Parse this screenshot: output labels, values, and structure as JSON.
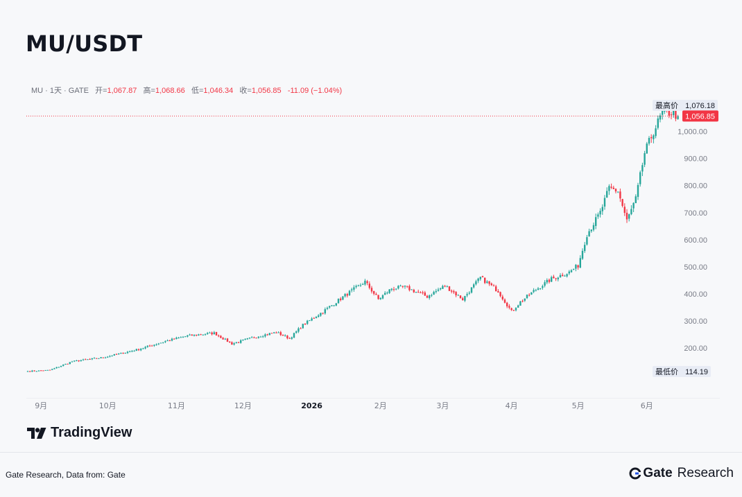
{
  "title": "MU/USDT",
  "header": {
    "symbol_info": "MU · 1天 · GATE",
    "open_label": "开=",
    "open_value": "1,067.87",
    "high_label": "高=",
    "high_value": "1,068.66",
    "low_label": "低=",
    "low_value": "1,046.34",
    "close_label": "收=",
    "close_value": "1,056.85",
    "change": "-11.09 (−1.04%)"
  },
  "colors": {
    "up": "#26a69a",
    "down": "#f23645",
    "price_line": "#f23645",
    "axis_text": "#787b86"
  },
  "chart_data": {
    "type": "candlestick",
    "ylim": [
      80,
      1110
    ],
    "y_ticks": [
      200,
      300,
      400,
      500,
      600,
      700,
      800,
      900,
      1000
    ],
    "y_tick_labels": [
      "200.00",
      "300.00",
      "400.00",
      "500.00",
      "600.00",
      "700.00",
      "800.00",
      "900.00",
      "1,000.00"
    ],
    "x_tick_labels": [
      "9月",
      "10月",
      "11月",
      "12月",
      "2026",
      "2月",
      "3月",
      "4月",
      "5月",
      "6月"
    ],
    "x_tick_days": [
      6,
      36,
      67,
      97,
      128,
      159,
      187,
      218,
      248,
      279
    ],
    "last_price": 1056.85,
    "last_price_label": "1,056.85",
    "max_label": "最高价",
    "max_value": 1076.18,
    "max_value_label": "1,076.18",
    "min_label": "最低价",
    "min_value": 114.19,
    "min_value_label": "114.19",
    "anchor_days": [
      0,
      10,
      20,
      34,
      50,
      62,
      72,
      84,
      92,
      102,
      112,
      118,
      124,
      134,
      144,
      152,
      158,
      164,
      170,
      180,
      188,
      196,
      204,
      212,
      218,
      222,
      228,
      236,
      244,
      248,
      252,
      258,
      262,
      266,
      270,
      274,
      278,
      282,
      286,
      290,
      293
    ],
    "anchor_closes": [
      114,
      118,
      150,
      165,
      195,
      225,
      245,
      255,
      215,
      240,
      258,
      235,
      285,
      340,
      400,
      445,
      380,
      420,
      425,
      390,
      430,
      380,
      460,
      410,
      335,
      370,
      410,
      455,
      480,
      505,
      620,
      700,
      790,
      780,
      670,
      750,
      920,
      1000,
      1068,
      1070,
      1057
    ]
  },
  "footer": {
    "source": "Gate Research, Data from: Gate",
    "logo_text": "TradingView",
    "brand_gate": "Gate",
    "brand_research": "Research"
  }
}
